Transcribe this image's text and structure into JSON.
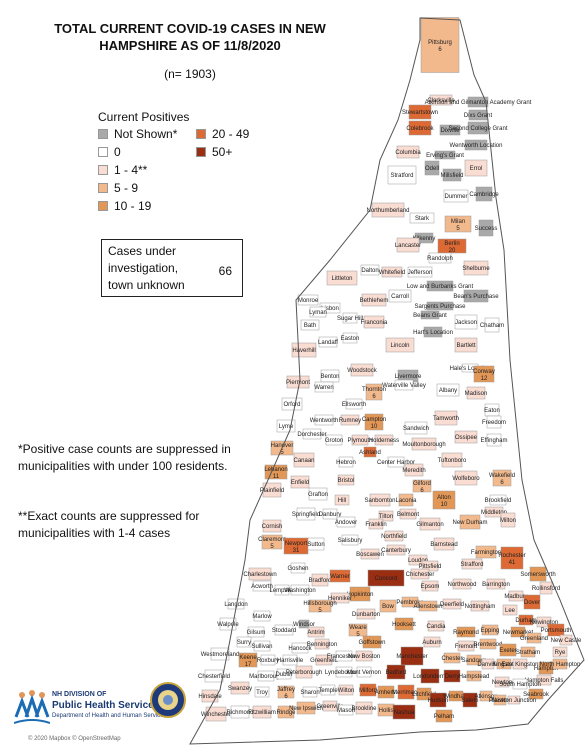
{
  "header": {
    "title_line1": "TOTAL CURRENT COVID-19 CASES IN NEW",
    "title_line2": "HAMPSHIRE AS OF 11/8/2020",
    "total": "(n= 1903)"
  },
  "legend": {
    "title": "Current Positives",
    "items": [
      {
        "label": "Not Shown*",
        "color": "#a9a9a9"
      },
      {
        "label": "0",
        "color": "#ffffff"
      },
      {
        "label": "1 - 4**",
        "color": "#f9dcd2"
      },
      {
        "label": "5 - 9",
        "color": "#f2b98d"
      },
      {
        "label": "10 - 19",
        "color": "#e39757"
      },
      {
        "label": "20 - 49",
        "color": "#dd6a35"
      },
      {
        "label": "50+",
        "color": "#9a2e12"
      }
    ]
  },
  "cases_under_investigation": {
    "label": "Cases under investigation, town unknown",
    "value": "66"
  },
  "notes": {
    "suppressed": "*Positive case counts are suppressed in municipalities with under 100 residents.",
    "exact": "**Exact counts are suppressed for municipalities with 1-4 cases"
  },
  "logo": {
    "line1": "NH DIVISION OF",
    "line2": "Public Health Services",
    "line3": "Department of Health and Human Services"
  },
  "copyright": "© 2020 Mapbox © OpenStreetMap",
  "towns": [
    {
      "name": "Pittsburg",
      "count": "6",
      "cat": 3
    },
    {
      "name": "Clarksville",
      "count": "",
      "cat": 2
    },
    {
      "name": "Atkinson and Gilmanton Academy Grant",
      "count": "",
      "cat": 0
    },
    {
      "name": "Stewartstown",
      "count": "",
      "cat": 5
    },
    {
      "name": "Dixs Grant",
      "count": "",
      "cat": 0
    },
    {
      "name": "Colebrook",
      "count": "",
      "cat": 5
    },
    {
      "name": "Dixville",
      "count": "",
      "cat": 0
    },
    {
      "name": "Second College Grant",
      "count": "",
      "cat": 0
    },
    {
      "name": "Wentworth Location",
      "count": "",
      "cat": 0
    },
    {
      "name": "Columbia",
      "count": "",
      "cat": 2
    },
    {
      "name": "Erving's Grant",
      "count": "",
      "cat": 0
    },
    {
      "name": "Odell",
      "count": "",
      "cat": 0
    },
    {
      "name": "Millsfield",
      "count": "",
      "cat": 0
    },
    {
      "name": "Errol",
      "count": "",
      "cat": 2
    },
    {
      "name": "Stratford",
      "count": "",
      "cat": 1
    },
    {
      "name": "Dummer",
      "count": "",
      "cat": 1
    },
    {
      "name": "Cambridge",
      "count": "",
      "cat": 0
    },
    {
      "name": "Northumberland",
      "count": "",
      "cat": 2
    },
    {
      "name": "Stark",
      "count": "",
      "cat": 1
    },
    {
      "name": "Milan",
      "count": "5",
      "cat": 3
    },
    {
      "name": "Success",
      "count": "",
      "cat": 0
    },
    {
      "name": "Kilkenny",
      "count": "",
      "cat": 0
    },
    {
      "name": "Berlin",
      "count": "20",
      "cat": 5
    },
    {
      "name": "Lancaster",
      "count": "",
      "cat": 2
    },
    {
      "name": "Randolph",
      "count": "",
      "cat": 1
    },
    {
      "name": "Shelburne",
      "count": "",
      "cat": 2
    },
    {
      "name": "Littleton",
      "count": "",
      "cat": 2
    },
    {
      "name": "Dalton",
      "count": "",
      "cat": 1
    },
    {
      "name": "Whitefield",
      "count": "",
      "cat": 2
    },
    {
      "name": "Jefferson",
      "count": "",
      "cat": 1
    },
    {
      "name": "Low and Burbanks Grant",
      "count": "",
      "cat": 0
    },
    {
      "name": "Bean's Purchase",
      "count": "",
      "cat": 0
    },
    {
      "name": "Carroll",
      "count": "",
      "cat": 1
    },
    {
      "name": "Bethlehem",
      "count": "",
      "cat": 2
    },
    {
      "name": "Sargents Purchase",
      "count": "",
      "cat": 0
    },
    {
      "name": "Monroe",
      "count": "",
      "cat": 1
    },
    {
      "name": "Lisbon",
      "count": "",
      "cat": 1
    },
    {
      "name": "Lyman",
      "count": "",
      "cat": 1
    },
    {
      "name": "Sugar Hill",
      "count": "",
      "cat": 1
    },
    {
      "name": "Franconia",
      "count": "",
      "cat": 2
    },
    {
      "name": "Beans Grant",
      "count": "",
      "cat": 0
    },
    {
      "name": "Bath",
      "count": "",
      "cat": 1
    },
    {
      "name": "Hart's Location",
      "count": "",
      "cat": 0
    },
    {
      "name": "Jackson",
      "count": "",
      "cat": 1
    },
    {
      "name": "Chatham",
      "count": "",
      "cat": 1
    },
    {
      "name": "Landaff",
      "count": "",
      "cat": 1
    },
    {
      "name": "Easton",
      "count": "",
      "cat": 1
    },
    {
      "name": "Lincoln",
      "count": "",
      "cat": 2
    },
    {
      "name": "Haverhill",
      "count": "",
      "cat": 2
    },
    {
      "name": "Bartlett",
      "count": "",
      "cat": 2
    },
    {
      "name": "Benton",
      "count": "",
      "cat": 1
    },
    {
      "name": "Woodstock",
      "count": "",
      "cat": 2
    },
    {
      "name": "Hale's Location",
      "count": "",
      "cat": 1
    },
    {
      "name": "Livermore",
      "count": "",
      "cat": 0
    },
    {
      "name": "Conway",
      "count": "12",
      "cat": 4
    },
    {
      "name": "Piermont",
      "count": "",
      "cat": 2
    },
    {
      "name": "Warren",
      "count": "",
      "cat": 1
    },
    {
      "name": "Thornton",
      "count": "6",
      "cat": 3
    },
    {
      "name": "Waterville Valley",
      "count": "",
      "cat": 1
    },
    {
      "name": "Albany",
      "count": "",
      "cat": 1
    },
    {
      "name": "Madison",
      "count": "",
      "cat": 2
    },
    {
      "name": "Orford",
      "count": "",
      "cat": 1
    },
    {
      "name": "Ellsworth",
      "count": "",
      "cat": 1
    },
    {
      "name": "Eaton",
      "count": "",
      "cat": 1
    },
    {
      "name": "Wentworth",
      "count": "",
      "cat": 1
    },
    {
      "name": "Rumney",
      "count": "",
      "cat": 2
    },
    {
      "name": "Campton",
      "count": "10",
      "cat": 4
    },
    {
      "name": "Freedom",
      "count": "",
      "cat": 1
    },
    {
      "name": "Lyme",
      "count": "",
      "cat": 1
    },
    {
      "name": "Sandwich",
      "count": "",
      "cat": 1
    },
    {
      "name": "Tamworth",
      "count": "",
      "cat": 2
    },
    {
      "name": "Dorchester",
      "count": "",
      "cat": 1
    },
    {
      "name": "Groton",
      "count": "",
      "cat": 1
    },
    {
      "name": "Plymouth",
      "count": "",
      "cat": 2
    },
    {
      "name": "Holderness",
      "count": "",
      "cat": 2
    },
    {
      "name": "Ossipee",
      "count": "",
      "cat": 2
    },
    {
      "name": "Effingham",
      "count": "",
      "cat": 1
    },
    {
      "name": "Moultonborough",
      "count": "",
      "cat": 2
    },
    {
      "name": "Hanover",
      "count": "5",
      "cat": 3
    },
    {
      "name": "Canaan",
      "count": "",
      "cat": 2
    },
    {
      "name": "Ashland",
      "count": "",
      "cat": 5
    },
    {
      "name": "Center Harbor",
      "count": "",
      "cat": 1
    },
    {
      "name": "Tuftonboro",
      "count": "",
      "cat": 2
    },
    {
      "name": "Hebron",
      "count": "",
      "cat": 1
    },
    {
      "name": "Meredith",
      "count": "",
      "cat": 2
    },
    {
      "name": "Wolfeboro",
      "count": "",
      "cat": 2
    },
    {
      "name": "Wakefield",
      "count": "6",
      "cat": 3
    },
    {
      "name": "Lebanon",
      "count": "11",
      "cat": 4
    },
    {
      "name": "Enfield",
      "count": "",
      "cat": 2
    },
    {
      "name": "Bristol",
      "count": "",
      "cat": 2
    },
    {
      "name": "Gilford",
      "count": "6",
      "cat": 3
    },
    {
      "name": "Plainfield",
      "count": "",
      "cat": 2
    },
    {
      "name": "Grafton",
      "count": "",
      "cat": 1
    },
    {
      "name": "Hill",
      "count": "",
      "cat": 2
    },
    {
      "name": "Sanbornton",
      "count": "",
      "cat": 2
    },
    {
      "name": "Laconia",
      "count": "",
      "cat": 3
    },
    {
      "name": "Alton",
      "count": "10",
      "cat": 4
    },
    {
      "name": "Brookfield",
      "count": "",
      "cat": 1
    },
    {
      "name": "Middleton",
      "count": "",
      "cat": 2
    },
    {
      "name": "Springfield",
      "count": "",
      "cat": 1
    },
    {
      "name": "Danbury",
      "count": "",
      "cat": 1
    },
    {
      "name": "Tilton",
      "count": "",
      "cat": 2
    },
    {
      "name": "Belmont",
      "count": "",
      "cat": 2
    },
    {
      "name": "Milton",
      "count": "",
      "cat": 2
    },
    {
      "name": "Cornish",
      "count": "",
      "cat": 2
    },
    {
      "name": "Andover",
      "count": "",
      "cat": 1
    },
    {
      "name": "Franklin",
      "count": "",
      "cat": 2
    },
    {
      "name": "Gilmanton",
      "count": "",
      "cat": 2
    },
    {
      "name": "New Durham",
      "count": "",
      "cat": 3
    },
    {
      "name": "Salisbury",
      "count": "",
      "cat": 1
    },
    {
      "name": "Northfield",
      "count": "",
      "cat": 2
    },
    {
      "name": "Farmington",
      "count": "",
      "cat": 3
    },
    {
      "name": "Claremont",
      "count": "5",
      "cat": 3
    },
    {
      "name": "Newport",
      "count": "31",
      "cat": 5
    },
    {
      "name": "Sutton",
      "count": "",
      "cat": 1
    },
    {
      "name": "Barnstead",
      "count": "",
      "cat": 2
    },
    {
      "name": "Rochester",
      "count": "41",
      "cat": 5
    },
    {
      "name": "Boscawen",
      "count": "",
      "cat": 2
    },
    {
      "name": "Canterbury",
      "count": "",
      "cat": 2
    },
    {
      "name": "Loudon",
      "count": "",
      "cat": 2
    },
    {
      "name": "Strafford",
      "count": "",
      "cat": 2
    },
    {
      "name": "Charlestown",
      "count": "",
      "cat": 2
    },
    {
      "name": "Goshen",
      "count": "",
      "cat": 1
    },
    {
      "name": "Bradford",
      "count": "",
      "cat": 2
    },
    {
      "name": "Warner",
      "count": "",
      "cat": 5
    },
    {
      "name": "Pittsfield",
      "count": "",
      "cat": 2
    },
    {
      "name": "Concord",
      "count": "",
      "cat": 6
    },
    {
      "name": "Chichester",
      "count": "",
      "cat": 2
    },
    {
      "name": "Somersworth",
      "count": "",
      "cat": 4
    },
    {
      "name": "Acworth",
      "count": "",
      "cat": 1
    },
    {
      "name": "Lempster",
      "count": "",
      "cat": 1
    },
    {
      "name": "Washington",
      "count": "",
      "cat": 1
    },
    {
      "name": "Hopkinton",
      "count": "",
      "cat": 4
    },
    {
      "name": "Epsom",
      "count": "",
      "cat": 2
    },
    {
      "name": "Northwood",
      "count": "",
      "cat": 2
    },
    {
      "name": "Barrington",
      "count": "",
      "cat": 2
    },
    {
      "name": "Rollinsford",
      "count": "",
      "cat": 2
    },
    {
      "name": "Henniker",
      "count": "",
      "cat": 2
    },
    {
      "name": "Madbury",
      "count": "",
      "cat": 2
    },
    {
      "name": "Dover",
      "count": "",
      "cat": 5
    },
    {
      "name": "Langdon",
      "count": "",
      "cat": 1
    },
    {
      "name": "Hillsborough",
      "count": "5",
      "cat": 3
    },
    {
      "name": "Bow",
      "count": "",
      "cat": 3
    },
    {
      "name": "Pembroke",
      "count": "",
      "cat": 3
    },
    {
      "name": "Allenstown",
      "count": "",
      "cat": 3
    },
    {
      "name": "Deerfield",
      "count": "",
      "cat": 2
    },
    {
      "name": "Nottingham",
      "count": "",
      "cat": 2
    },
    {
      "name": "Lee",
      "count": "",
      "cat": 2
    },
    {
      "name": "Durham",
      "count": "",
      "cat": 5
    },
    {
      "name": "Walpole",
      "count": "",
      "cat": 1
    },
    {
      "name": "Marlow",
      "count": "",
      "cat": 1
    },
    {
      "name": "Stoddard",
      "count": "",
      "cat": 1
    },
    {
      "name": "Windsor",
      "count": "",
      "cat": 0
    },
    {
      "name": "Dunbarton",
      "count": "",
      "cat": 2
    },
    {
      "name": "Hooksett",
      "count": "",
      "cat": 4
    },
    {
      "name": "Candia",
      "count": "",
      "cat": 2
    },
    {
      "name": "Newington",
      "count": "",
      "cat": 2
    },
    {
      "name": "Gilsum",
      "count": "",
      "cat": 1
    },
    {
      "name": "Antrim",
      "count": "",
      "cat": 2
    },
    {
      "name": "Weare",
      "count": "5",
      "cat": 3
    },
    {
      "name": "Raymond",
      "count": "",
      "cat": 4
    },
    {
      "name": "Epping",
      "count": "",
      "cat": 3
    },
    {
      "name": "Newmarket",
      "count": "",
      "cat": 4
    },
    {
      "name": "Greenland",
      "count": "",
      "cat": 3
    },
    {
      "name": "Portsmouth",
      "count": "",
      "cat": 5
    },
    {
      "name": "Surry",
      "count": "",
      "cat": 1
    },
    {
      "name": "Sullivan",
      "count": "",
      "cat": 1
    },
    {
      "name": "Hancock",
      "count": "",
      "cat": 1
    },
    {
      "name": "Bennington",
      "count": "",
      "cat": 2
    },
    {
      "name": "Goffstown",
      "count": "",
      "cat": 4
    },
    {
      "name": "Auburn",
      "count": "",
      "cat": 2
    },
    {
      "name": "Fremont",
      "count": "",
      "cat": 2
    },
    {
      "name": "Brentwood",
      "count": "",
      "cat": 3
    },
    {
      "name": "Exeter",
      "count": "",
      "cat": 4
    },
    {
      "name": "Stratham",
      "count": "",
      "cat": 3
    },
    {
      "name": "New Castle",
      "count": "",
      "cat": 2
    },
    {
      "name": "Rye",
      "count": "",
      "cat": 2
    },
    {
      "name": "Westmoreland",
      "count": "",
      "cat": 1
    },
    {
      "name": "Keene",
      "count": "17",
      "cat": 4
    },
    {
      "name": "Roxbury",
      "count": "",
      "cat": 1
    },
    {
      "name": "Harrisville",
      "count": "",
      "cat": 1
    },
    {
      "name": "Greenfield",
      "count": "",
      "cat": 2
    },
    {
      "name": "Francestown",
      "count": "",
      "cat": 1
    },
    {
      "name": "New Boston",
      "count": "",
      "cat": 2
    },
    {
      "name": "Manchester",
      "count": "",
      "cat": 6
    },
    {
      "name": "Chester",
      "count": "",
      "cat": 3
    },
    {
      "name": "Sandown",
      "count": "",
      "cat": 3
    },
    {
      "name": "Danville",
      "count": "",
      "cat": 2
    },
    {
      "name": "Kingston",
      "count": "",
      "cat": 3
    },
    {
      "name": "East Kingston",
      "count": "",
      "cat": 2
    },
    {
      "name": "Hampton",
      "count": "",
      "cat": 4
    },
    {
      "name": "North Hampton",
      "count": "",
      "cat": 3
    },
    {
      "name": "Hampton Falls",
      "count": "",
      "cat": 2
    },
    {
      "name": "Chesterfield",
      "count": "",
      "cat": 1
    },
    {
      "name": "Marlborough",
      "count": "",
      "cat": 1
    },
    {
      "name": "Dublin",
      "count": "",
      "cat": 1
    },
    {
      "name": "Peterborough",
      "count": "",
      "cat": 2
    },
    {
      "name": "Lyndeborough",
      "count": "",
      "cat": 1
    },
    {
      "name": "Mont Vernon",
      "count": "",
      "cat": 1
    },
    {
      "name": "Bedford",
      "count": "",
      "cat": 6
    },
    {
      "name": "Londonderry",
      "count": "",
      "cat": 6
    },
    {
      "name": "Derry",
      "count": "",
      "cat": 6
    },
    {
      "name": "Hampstead",
      "count": "",
      "cat": 3
    },
    {
      "name": "Newton",
      "count": "",
      "cat": 2
    },
    {
      "name": "South Hampton",
      "count": "",
      "cat": 1
    },
    {
      "name": "Seabrook",
      "count": "",
      "cat": 4
    },
    {
      "name": "Swanzey",
      "count": "",
      "cat": 2
    },
    {
      "name": "Troy",
      "count": "",
      "cat": 1
    },
    {
      "name": "Jaffrey",
      "count": "6",
      "cat": 3
    },
    {
      "name": "Sharon",
      "count": "",
      "cat": 1
    },
    {
      "name": "Temple",
      "count": "",
      "cat": 1
    },
    {
      "name": "Wilton",
      "count": "",
      "cat": 2
    },
    {
      "name": "Milford",
      "count": "",
      "cat": 5
    },
    {
      "name": "Amherst",
      "count": "",
      "cat": 4
    },
    {
      "name": "Merrimack",
      "count": "",
      "cat": 5
    },
    {
      "name": "Litchfield",
      "count": "",
      "cat": 4
    },
    {
      "name": "Hudson",
      "count": "",
      "cat": 6
    },
    {
      "name": "Windham",
      "count": "",
      "cat": 4
    },
    {
      "name": "Salem",
      "count": "",
      "cat": 6
    },
    {
      "name": "Atkinson",
      "count": "",
      "cat": 3
    },
    {
      "name": "Plaistow",
      "count": "",
      "cat": 3
    },
    {
      "name": "Newton Junction",
      "count": "",
      "cat": 2
    },
    {
      "name": "Hinsdale",
      "count": "",
      "cat": 2
    },
    {
      "name": "Winchester",
      "count": "",
      "cat": 2
    },
    {
      "name": "Richmond",
      "count": "",
      "cat": 1
    },
    {
      "name": "Fitzwilliam",
      "count": "",
      "cat": 2
    },
    {
      "name": "Rindge",
      "count": "",
      "cat": 3
    },
    {
      "name": "New Ipswich",
      "count": "",
      "cat": 3
    },
    {
      "name": "Greenville",
      "count": "",
      "cat": 2
    },
    {
      "name": "Mason",
      "count": "",
      "cat": 1
    },
    {
      "name": "Brookline",
      "count": "",
      "cat": 2
    },
    {
      "name": "Hollis",
      "count": "",
      "cat": 3
    },
    {
      "name": "Nashua",
      "count": "",
      "cat": 6
    },
    {
      "name": "Pelham",
      "count": "",
      "cat": 4
    }
  ]
}
